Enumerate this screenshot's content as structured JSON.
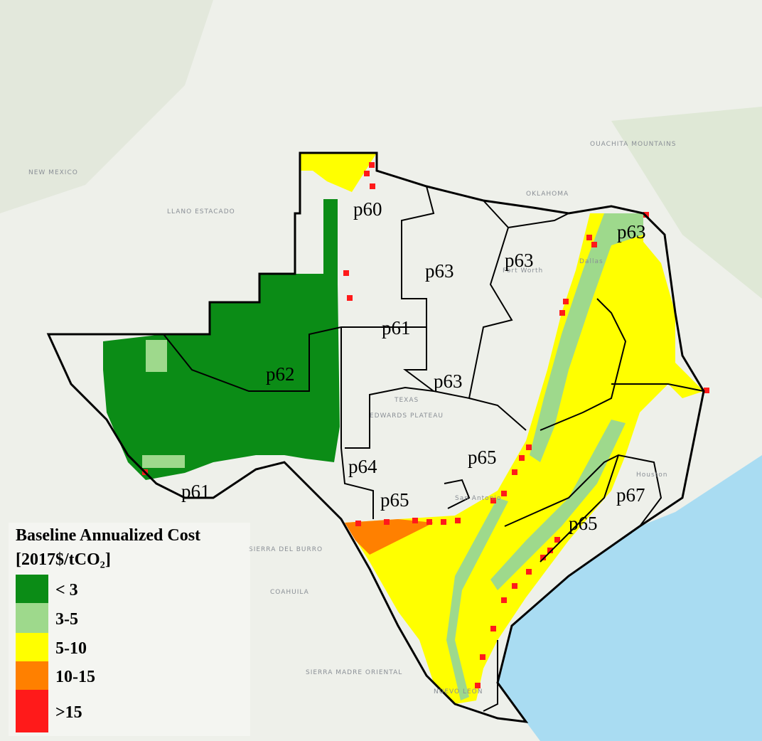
{
  "legend": {
    "title": "Baseline Annualized Cost",
    "unit": "[2017$/tCO₂]",
    "items": [
      {
        "label": "< 3",
        "color": "#0b8c16"
      },
      {
        "label": "3-5",
        "color": "#9ed98c"
      },
      {
        "label": "5-10",
        "color": "#ffff00"
      },
      {
        "label": "10-15",
        "color": "#ff8000"
      },
      {
        "label": ">15",
        "color": "#ff1a1a"
      }
    ]
  },
  "regions": [
    "p60",
    "p63",
    "p63",
    "p63",
    "p61",
    "p62",
    "p63",
    "p64",
    "p65",
    "p65",
    "p65",
    "p67",
    "p61"
  ],
  "basemap_labels": [
    "NEW MEXICO",
    "OKLAHOMA",
    "TEXAS",
    "LLANO ESTACADO",
    "EDWARDS PLATEAU",
    "Dallas",
    "Fort Worth",
    "Houston",
    "San Antonio",
    "COAHUILA",
    "NUEVO LEON",
    "SIERRA MADRE ORIENTAL",
    "OUACHITA MOUNTAINS",
    "SIERRA DEL BURRO"
  ]
}
